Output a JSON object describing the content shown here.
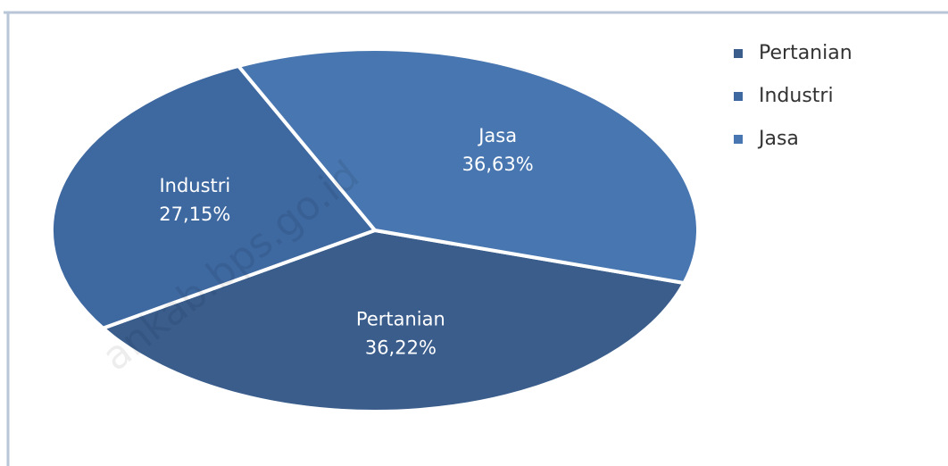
{
  "chart_data": {
    "type": "pie",
    "categories": [
      "Pertanian",
      "Industri",
      "Jasa"
    ],
    "values": [
      36.22,
      27.15,
      36.63
    ],
    "value_labels": [
      "36,22%",
      "27,15%",
      "36,63%"
    ],
    "colors": [
      "#3a5d8c",
      "#3e68a0",
      "#4876b0"
    ],
    "legend": "right",
    "watermark": "ankab.bps.go.id"
  }
}
